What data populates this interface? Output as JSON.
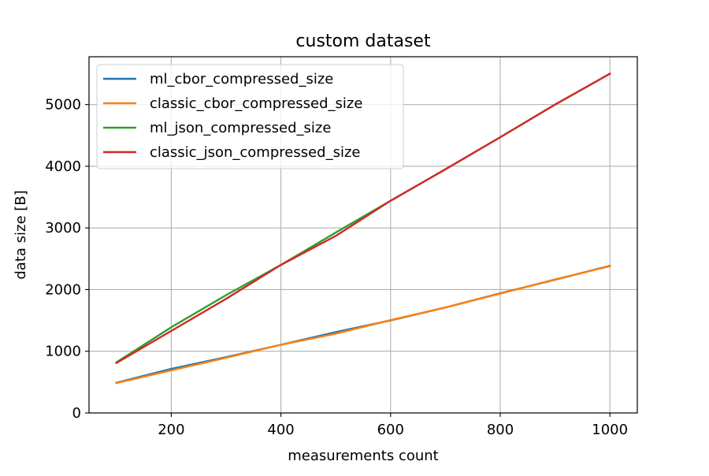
{
  "chart_data": {
    "type": "line",
    "title": "custom dataset",
    "xlabel": "measurements count",
    "ylabel": "data size [B]",
    "xlim": [
      50,
      1050
    ],
    "ylim": [
      0,
      5775
    ],
    "xticks": [
      200,
      400,
      600,
      800,
      1000
    ],
    "yticks": [
      0,
      1000,
      2000,
      3000,
      4000,
      5000
    ],
    "grid": true,
    "legend_position": "top-left",
    "x": [
      100,
      200,
      300,
      400,
      500,
      600,
      700,
      800,
      900,
      1000
    ],
    "series": [
      {
        "name": "ml_cbor_compressed_size",
        "color": "#1f77b4",
        "values": [
          490,
          715,
          905,
          1105,
          1310,
          1500,
          1710,
          1940,
          2160,
          2385
        ]
      },
      {
        "name": "classic_cbor_compressed_size",
        "color": "#ff7f0e",
        "values": [
          485,
          690,
          895,
          1105,
          1285,
          1505,
          1710,
          1935,
          2165,
          2380
        ]
      },
      {
        "name": "ml_json_compressed_size",
        "color": "#2ca02c",
        "values": [
          820,
          1390,
          1910,
          2400,
          2925,
          3440,
          3950,
          4470,
          5000,
          5500
        ]
      },
      {
        "name": "classic_json_compressed_size",
        "color": "#d62728",
        "values": [
          810,
          1330,
          1850,
          2400,
          2870,
          3440,
          3950,
          4470,
          5000,
          5500
        ]
      }
    ]
  }
}
